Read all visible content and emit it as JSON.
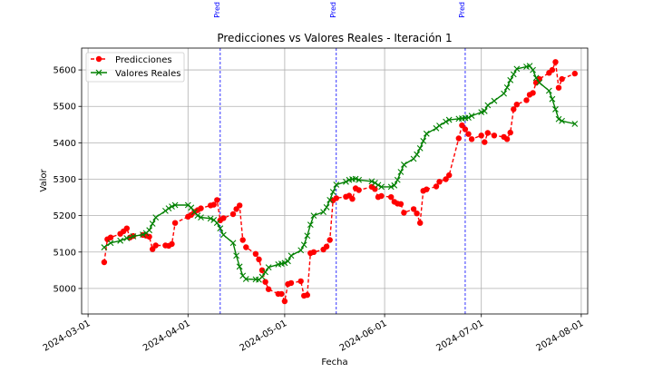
{
  "chart_data": {
    "type": "line",
    "title": "Predicciones vs Valores Reales - Iteración 1",
    "xlabel": "Fecha",
    "ylabel": "Valor",
    "xlim": [
      "2024-02-28",
      "2024-08-03"
    ],
    "ylim": [
      4930,
      5660
    ],
    "grid": true,
    "legend_position": "top-left",
    "x_ticks": [
      "2024-03-01",
      "2024-04-01",
      "2024-05-01",
      "2024-06-01",
      "2024-07-01",
      "2024-08-01"
    ],
    "y_ticks": [
      5000,
      5100,
      5200,
      5300,
      5400,
      5500,
      5600
    ],
    "vertical_lines": [
      {
        "date": "2024-04-11",
        "label": "Pred"
      },
      {
        "date": "2024-05-17",
        "label": "Pred"
      },
      {
        "date": "2024-06-26",
        "label": "Pred"
      }
    ],
    "series": [
      {
        "name": "Predicciones",
        "color": "#ff0000",
        "style": "dashed",
        "marker": "circle",
        "points": [
          [
            "2024-03-06",
            5072
          ],
          [
            "2024-03-07",
            5135
          ],
          [
            "2024-03-08",
            5140
          ],
          [
            "2024-03-11",
            5150
          ],
          [
            "2024-03-12",
            5157
          ],
          [
            "2024-03-13",
            5165
          ],
          [
            "2024-03-14",
            5140
          ],
          [
            "2024-03-15",
            5144
          ],
          [
            "2024-03-18",
            5147
          ],
          [
            "2024-03-19",
            5145
          ],
          [
            "2024-03-20",
            5142
          ],
          [
            "2024-03-21",
            5108
          ],
          [
            "2024-03-22",
            5118
          ],
          [
            "2024-03-25",
            5118
          ],
          [
            "2024-03-26",
            5117
          ],
          [
            "2024-03-27",
            5122
          ],
          [
            "2024-03-28",
            5180
          ],
          [
            "2024-04-01",
            5197
          ],
          [
            "2024-04-02",
            5202
          ],
          [
            "2024-04-03",
            5210
          ],
          [
            "2024-04-04",
            5215
          ],
          [
            "2024-04-05",
            5220
          ],
          [
            "2024-04-08",
            5228
          ],
          [
            "2024-04-09",
            5230
          ],
          [
            "2024-04-10",
            5243
          ],
          [
            "2024-04-11",
            5187
          ],
          [
            "2024-04-12",
            5193
          ],
          [
            "2024-04-15",
            5204
          ],
          [
            "2024-04-16",
            5218
          ],
          [
            "2024-04-17",
            5228
          ],
          [
            "2024-04-18",
            5133
          ],
          [
            "2024-04-19",
            5113
          ],
          [
            "2024-04-22",
            5095
          ],
          [
            "2024-04-23",
            5080
          ],
          [
            "2024-04-24",
            5050
          ],
          [
            "2024-04-25",
            5018
          ],
          [
            "2024-04-26",
            4998
          ],
          [
            "2024-04-29",
            4985
          ],
          [
            "2024-04-30",
            4985
          ],
          [
            "2024-05-01",
            4965
          ],
          [
            "2024-05-02",
            5012
          ],
          [
            "2024-05-03",
            5015
          ],
          [
            "2024-05-06",
            5020
          ],
          [
            "2024-05-07",
            4980
          ],
          [
            "2024-05-08",
            4982
          ],
          [
            "2024-05-09",
            5097
          ],
          [
            "2024-05-10",
            5100
          ],
          [
            "2024-05-13",
            5107
          ],
          [
            "2024-05-14",
            5115
          ],
          [
            "2024-05-15",
            5133
          ],
          [
            "2024-05-16",
            5242
          ],
          [
            "2024-05-17",
            5248
          ],
          [
            "2024-05-20",
            5252
          ],
          [
            "2024-05-21",
            5255
          ],
          [
            "2024-05-22",
            5246
          ],
          [
            "2024-05-23",
            5275
          ],
          [
            "2024-05-24",
            5270
          ],
          [
            "2024-05-28",
            5279
          ],
          [
            "2024-05-29",
            5273
          ],
          [
            "2024-05-30",
            5251
          ],
          [
            "2024-05-31",
            5254
          ],
          [
            "2024-06-03",
            5251
          ],
          [
            "2024-06-04",
            5238
          ],
          [
            "2024-06-05",
            5233
          ],
          [
            "2024-06-06",
            5232
          ],
          [
            "2024-06-07",
            5208
          ],
          [
            "2024-06-10",
            5218
          ],
          [
            "2024-06-11",
            5206
          ],
          [
            "2024-06-12",
            5180
          ],
          [
            "2024-06-13",
            5268
          ],
          [
            "2024-06-14",
            5272
          ],
          [
            "2024-06-17",
            5280
          ],
          [
            "2024-06-18",
            5293
          ],
          [
            "2024-06-20",
            5300
          ],
          [
            "2024-06-21",
            5311
          ],
          [
            "2024-06-24",
            5412
          ],
          [
            "2024-06-25",
            5448
          ],
          [
            "2024-06-26",
            5437
          ],
          [
            "2024-06-27",
            5424
          ],
          [
            "2024-06-28",
            5410
          ],
          [
            "2024-07-01",
            5420
          ],
          [
            "2024-07-02",
            5402
          ],
          [
            "2024-07-03",
            5427
          ],
          [
            "2024-07-05",
            5420
          ],
          [
            "2024-07-08",
            5416
          ],
          [
            "2024-07-09",
            5410
          ],
          [
            "2024-07-10",
            5428
          ],
          [
            "2024-07-11",
            5492
          ],
          [
            "2024-07-12",
            5505
          ],
          [
            "2024-07-15",
            5517
          ],
          [
            "2024-07-16",
            5532
          ],
          [
            "2024-07-17",
            5537
          ],
          [
            "2024-07-18",
            5565
          ],
          [
            "2024-07-19",
            5575
          ],
          [
            "2024-07-22",
            5592
          ],
          [
            "2024-07-23",
            5600
          ],
          [
            "2024-07-24",
            5622
          ],
          [
            "2024-07-25",
            5551
          ],
          [
            "2024-07-26",
            5575
          ],
          [
            "2024-07-30",
            5590
          ]
        ]
      },
      {
        "name": "Valores Reales",
        "color": "#008000",
        "style": "solid",
        "marker": "x",
        "points": [
          [
            "2024-03-06",
            5113
          ],
          [
            "2024-03-08",
            5125
          ],
          [
            "2024-03-11",
            5131
          ],
          [
            "2024-03-13",
            5138
          ],
          [
            "2024-03-15",
            5143
          ],
          [
            "2024-03-18",
            5148
          ],
          [
            "2024-03-19",
            5152
          ],
          [
            "2024-03-20",
            5160
          ],
          [
            "2024-03-21",
            5178
          ],
          [
            "2024-03-22",
            5195
          ],
          [
            "2024-03-25",
            5213
          ],
          [
            "2024-03-26",
            5220
          ],
          [
            "2024-03-27",
            5225
          ],
          [
            "2024-03-28",
            5229
          ],
          [
            "2024-04-01",
            5229
          ],
          [
            "2024-04-02",
            5222
          ],
          [
            "2024-04-03",
            5210
          ],
          [
            "2024-04-04",
            5200
          ],
          [
            "2024-04-05",
            5195
          ],
          [
            "2024-04-08",
            5192
          ],
          [
            "2024-04-09",
            5188
          ],
          [
            "2024-04-10",
            5180
          ],
          [
            "2024-04-11",
            5165
          ],
          [
            "2024-04-12",
            5147
          ],
          [
            "2024-04-15",
            5125
          ],
          [
            "2024-04-16",
            5090
          ],
          [
            "2024-04-17",
            5060
          ],
          [
            "2024-04-18",
            5035
          ],
          [
            "2024-04-19",
            5026
          ],
          [
            "2024-04-22",
            5025
          ],
          [
            "2024-04-23",
            5024
          ],
          [
            "2024-04-24",
            5032
          ],
          [
            "2024-04-25",
            5045
          ],
          [
            "2024-04-26",
            5058
          ],
          [
            "2024-04-29",
            5066
          ],
          [
            "2024-04-30",
            5068
          ],
          [
            "2024-05-01",
            5070
          ],
          [
            "2024-05-02",
            5075
          ],
          [
            "2024-05-03",
            5090
          ],
          [
            "2024-05-06",
            5105
          ],
          [
            "2024-05-07",
            5120
          ],
          [
            "2024-05-08",
            5145
          ],
          [
            "2024-05-09",
            5175
          ],
          [
            "2024-05-10",
            5200
          ],
          [
            "2024-05-13",
            5210
          ],
          [
            "2024-05-14",
            5223
          ],
          [
            "2024-05-15",
            5243
          ],
          [
            "2024-05-16",
            5265
          ],
          [
            "2024-05-17",
            5285
          ],
          [
            "2024-05-20",
            5293
          ],
          [
            "2024-05-21",
            5298
          ],
          [
            "2024-05-22",
            5300
          ],
          [
            "2024-05-23",
            5301
          ],
          [
            "2024-05-24",
            5298
          ],
          [
            "2024-05-28",
            5294
          ],
          [
            "2024-05-29",
            5290
          ],
          [
            "2024-05-30",
            5284
          ],
          [
            "2024-05-31",
            5279
          ],
          [
            "2024-06-03",
            5279
          ],
          [
            "2024-06-04",
            5283
          ],
          [
            "2024-06-05",
            5298
          ],
          [
            "2024-06-06",
            5320
          ],
          [
            "2024-06-07",
            5340
          ],
          [
            "2024-06-10",
            5356
          ],
          [
            "2024-06-11",
            5368
          ],
          [
            "2024-06-12",
            5385
          ],
          [
            "2024-06-13",
            5405
          ],
          [
            "2024-06-14",
            5425
          ],
          [
            "2024-06-17",
            5440
          ],
          [
            "2024-06-18",
            5447
          ],
          [
            "2024-06-20",
            5458
          ],
          [
            "2024-06-21",
            5463
          ],
          [
            "2024-06-24",
            5466
          ],
          [
            "2024-06-25",
            5467
          ],
          [
            "2024-06-26",
            5468
          ],
          [
            "2024-06-27",
            5469
          ],
          [
            "2024-06-28",
            5474
          ],
          [
            "2024-07-01",
            5484
          ],
          [
            "2024-07-02",
            5487
          ],
          [
            "2024-07-03",
            5503
          ],
          [
            "2024-07-05",
            5515
          ],
          [
            "2024-07-08",
            5535
          ],
          [
            "2024-07-09",
            5552
          ],
          [
            "2024-07-10",
            5572
          ],
          [
            "2024-07-11",
            5588
          ],
          [
            "2024-07-12",
            5603
          ],
          [
            "2024-07-15",
            5609
          ],
          [
            "2024-07-16",
            5611
          ],
          [
            "2024-07-17",
            5600
          ],
          [
            "2024-07-18",
            5578
          ],
          [
            "2024-07-19",
            5565
          ],
          [
            "2024-07-22",
            5543
          ],
          [
            "2024-07-23",
            5520
          ],
          [
            "2024-07-24",
            5492
          ],
          [
            "2024-07-25",
            5465
          ],
          [
            "2024-07-26",
            5460
          ],
          [
            "2024-07-30",
            5452
          ]
        ]
      }
    ]
  }
}
